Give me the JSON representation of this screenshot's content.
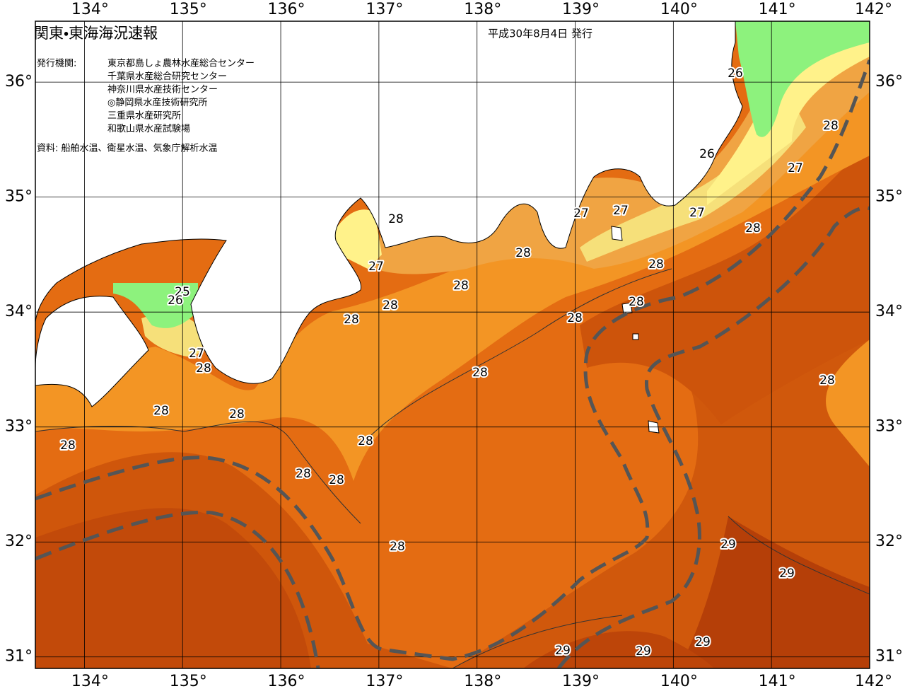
{
  "header": {
    "title": "関東・東海海況速報",
    "date": "平成30年8月4日 発行",
    "agencies_label": "発行機関:",
    "agencies": [
      "東京都島しょ農林水産総合センター",
      "千葉県水産総合研究センター",
      "神奈川県水産技術センター",
      "◎静岡県水産技術研究所",
      "三重県水産研究所",
      "和歌山県水産試験場"
    ],
    "source": "資料: 船舶水温、衛星水温、気象庁解析水温"
  },
  "map": {
    "xlim": [
      133.5,
      142
    ],
    "ylim": [
      30.9,
      36.53
    ],
    "xticks": [
      {
        "value": 134,
        "label": "134°"
      },
      {
        "value": 135,
        "label": "135°"
      },
      {
        "value": 136,
        "label": "136°"
      },
      {
        "value": 137,
        "label": "137°"
      },
      {
        "value": 138,
        "label": "138°"
      },
      {
        "value": 139,
        "label": "139°"
      },
      {
        "value": 140,
        "label": "140°"
      },
      {
        "value": 141,
        "label": "141°"
      },
      {
        "value": 142,
        "label": "142°"
      }
    ],
    "yticks": [
      {
        "value": 31,
        "label": "31°"
      },
      {
        "value": 32,
        "label": "32°"
      },
      {
        "value": 33,
        "label": "33°"
      },
      {
        "value": 34,
        "label": "34°"
      },
      {
        "value": 35,
        "label": "35°"
      },
      {
        "value": 36,
        "label": "36°"
      }
    ],
    "isotherm_labels": [
      26,
      28,
      26,
      27,
      27,
      27,
      27,
      28,
      28,
      28,
      27,
      28,
      28,
      28,
      28,
      25,
      26,
      28,
      28,
      27,
      28,
      28,
      28,
      28,
      28,
      28,
      28,
      28,
      28,
      28,
      29,
      29,
      29,
      29,
      29
    ]
  }
}
